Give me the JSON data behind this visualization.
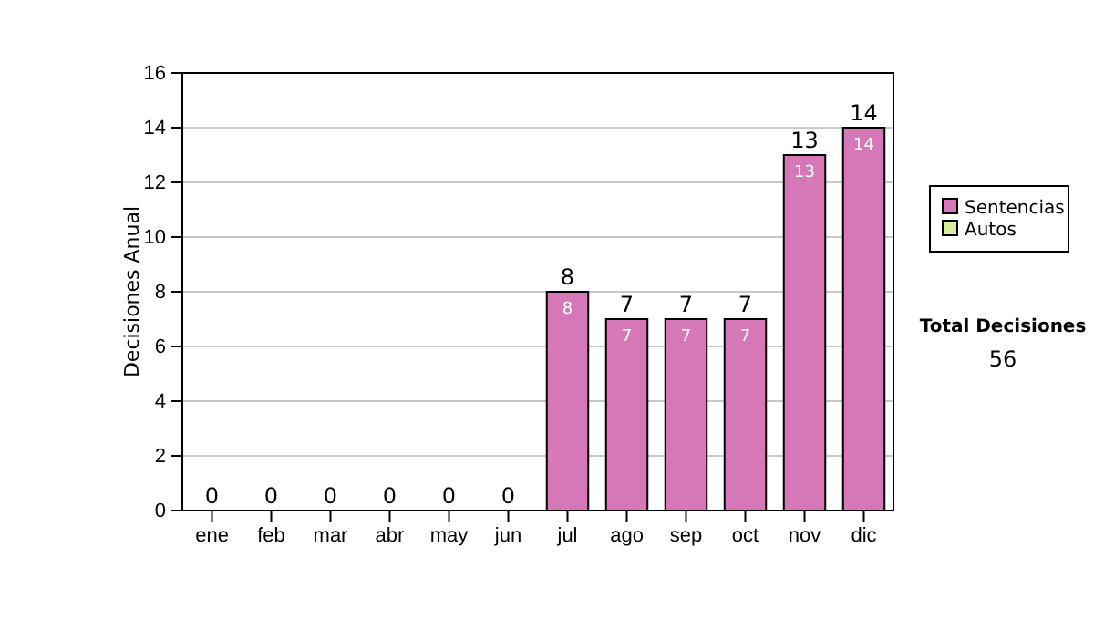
{
  "chart_data": {
    "type": "bar",
    "stacked": true,
    "ylabel": "Decisiones Anual",
    "categories": [
      "ene",
      "feb",
      "mar",
      "abr",
      "may",
      "jun",
      "jul",
      "ago",
      "sep",
      "oct",
      "nov",
      "dic"
    ],
    "series": [
      {
        "name": "Sentencias",
        "color": "#d678b8",
        "values": [
          0,
          0,
          0,
          0,
          0,
          0,
          8,
          7,
          7,
          7,
          13,
          14
        ],
        "value_labels": [
          null,
          null,
          null,
          null,
          null,
          null,
          "8",
          "7",
          "7",
          "7",
          "13",
          "14"
        ]
      },
      {
        "name": "Autos",
        "color": "#d6ec9e",
        "values": [
          0,
          0,
          0,
          0,
          0,
          0,
          0,
          0,
          0,
          0,
          0,
          0
        ]
      }
    ],
    "totals": [
      "0",
      "0",
      "0",
      "0",
      "0",
      "0",
      "8",
      "7",
      "7",
      "7",
      "13",
      "14"
    ],
    "ylim": [
      0,
      16
    ],
    "yticks": [
      0,
      2,
      4,
      6,
      8,
      10,
      12,
      14,
      16
    ],
    "grid": "y",
    "legend": "right",
    "annotations": [
      "Total Decisiones",
      "56"
    ]
  }
}
